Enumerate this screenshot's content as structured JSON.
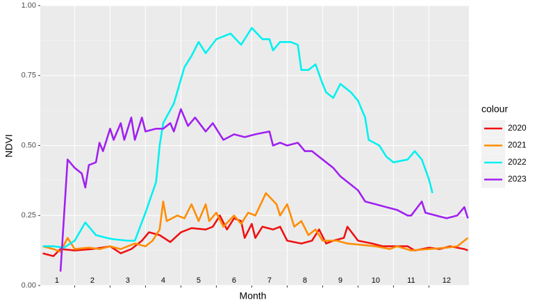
{
  "chart_data": {
    "type": "line",
    "xlabel": "Month",
    "ylabel": "NDVI",
    "legend_title": "colour",
    "legend": "right",
    "xlim": [
      0.53,
      12.63
    ],
    "ylim": [
      0,
      1
    ],
    "xticks": [
      1,
      2,
      3,
      4,
      5,
      6,
      7,
      8,
      9,
      10,
      11,
      12
    ],
    "xgrid": [
      1.5,
      2.5,
      3.5,
      4.5,
      5.5,
      6.5,
      7.5,
      8.5,
      9.5,
      10.5,
      11.5
    ],
    "yticks": [
      {
        "value": 0,
        "label": "0.00"
      },
      {
        "value": 0.25,
        "label": "0.25"
      },
      {
        "value": 0.5,
        "label": "0.50"
      },
      {
        "value": 0.75,
        "label": "0.75"
      },
      {
        "value": 1,
        "label": "1.00"
      }
    ],
    "yminor": [
      0.125,
      0.375,
      0.625,
      0.875
    ],
    "grid": true,
    "series": [
      {
        "name": "2020",
        "color": "#ee1111",
        "x": [
          0.6,
          0.9,
          1.1,
          1.5,
          2,
          2.5,
          2.8,
          3.1,
          3.4,
          3.6,
          3.9,
          4.2,
          4.5,
          4.8,
          5.2,
          5.4,
          5.6,
          5.8,
          6,
          6.2,
          6.3,
          6.5,
          6.6,
          6.8,
          7.1,
          7.3,
          7.5,
          7.9,
          8.2,
          8.4,
          8.6,
          8.8,
          9.1,
          9.2,
          9.5,
          9.9,
          10.2,
          10.6,
          10.9,
          11.1,
          11.5,
          11.8,
          12.1,
          12.5,
          12.6
        ],
        "values": [
          0.115,
          0.105,
          0.13,
          0.125,
          0.13,
          0.14,
          0.115,
          0.13,
          0.16,
          0.19,
          0.18,
          0.155,
          0.19,
          0.205,
          0.2,
          0.21,
          0.25,
          0.2,
          0.24,
          0.23,
          0.17,
          0.22,
          0.17,
          0.21,
          0.2,
          0.21,
          0.16,
          0.15,
          0.16,
          0.2,
          0.15,
          0.16,
          0.17,
          0.21,
          0.16,
          0.15,
          0.14,
          0.14,
          0.14,
          0.125,
          0.135,
          0.13,
          0.14,
          0.13,
          0.125
        ]
      },
      {
        "name": "2021",
        "color": "#ff8c00",
        "x": [
          0.6,
          0.9,
          1.1,
          1.3,
          1.5,
          1.9,
          2.2,
          2.5,
          2.8,
          3.2,
          3.5,
          3.7,
          3.9,
          4,
          4.1,
          4.4,
          4.6,
          4.8,
          5,
          5.2,
          5.3,
          5.5,
          5.7,
          6,
          6.2,
          6.4,
          6.6,
          6.9,
          7.2,
          7.3,
          7.5,
          7.7,
          7.9,
          8.1,
          8.3,
          8.5,
          8.9,
          9.2,
          9.6,
          10,
          10.4,
          10.6,
          11,
          11.5,
          12,
          12.3,
          12.6
        ],
        "values": [
          0.14,
          0.13,
          0.12,
          0.17,
          0.13,
          0.135,
          0.13,
          0.14,
          0.13,
          0.15,
          0.14,
          0.16,
          0.2,
          0.3,
          0.23,
          0.25,
          0.24,
          0.29,
          0.23,
          0.29,
          0.23,
          0.26,
          0.21,
          0.25,
          0.22,
          0.26,
          0.25,
          0.33,
          0.29,
          0.25,
          0.29,
          0.21,
          0.23,
          0.18,
          0.2,
          0.16,
          0.16,
          0.15,
          0.145,
          0.14,
          0.13,
          0.14,
          0.125,
          0.13,
          0.135,
          0.14,
          0.17
        ]
      },
      {
        "name": "2022",
        "color": "#00f0f0",
        "x": [
          0.6,
          0.9,
          1.2,
          1.5,
          1.8,
          2.1,
          2.4,
          2.6,
          3,
          3.2,
          3.5,
          3.8,
          3.9,
          4,
          4.3,
          4.6,
          4.8,
          5,
          5.2,
          5.5,
          5.9,
          6.2,
          6.5,
          6.8,
          7,
          7.1,
          7.3,
          7.6,
          7.8,
          7.9,
          8.1,
          8.3,
          8.5,
          8.6,
          8.8,
          9,
          9.3,
          9.5,
          9.7,
          9.8,
          10.1,
          10.3,
          10.5,
          10.9,
          11.1,
          11.3,
          11.5,
          11.6
        ],
        "values": [
          0.14,
          0.14,
          0.135,
          0.16,
          0.225,
          0.18,
          0.17,
          0.165,
          0.16,
          0.16,
          0.26,
          0.37,
          0.5,
          0.58,
          0.65,
          0.78,
          0.82,
          0.87,
          0.83,
          0.88,
          0.9,
          0.86,
          0.92,
          0.88,
          0.88,
          0.84,
          0.87,
          0.87,
          0.86,
          0.77,
          0.77,
          0.79,
          0.72,
          0.69,
          0.67,
          0.72,
          0.69,
          0.66,
          0.6,
          0.52,
          0.5,
          0.46,
          0.44,
          0.45,
          0.48,
          0.45,
          0.38,
          0.33
        ]
      },
      {
        "name": "2023",
        "color": "#a020f0",
        "x": [
          1.1,
          1.3,
          1.5,
          1.7,
          1.8,
          1.9,
          2.1,
          2.2,
          2.3,
          2.5,
          2.6,
          2.8,
          2.9,
          3.1,
          3.2,
          3.4,
          3.5,
          3.8,
          4,
          4.2,
          4.3,
          4.5,
          4.7,
          4.9,
          5.2,
          5.4,
          5.7,
          6,
          6.3,
          6.6,
          7,
          7.1,
          7.3,
          7.5,
          7.8,
          8,
          8.2,
          8.5,
          8.8,
          9,
          9.3,
          9.5,
          9.7,
          10,
          10.3,
          10.6,
          10.9,
          11,
          11.3,
          11.4,
          12,
          12.3,
          12.5,
          12.6
        ],
        "values": [
          0.05,
          0.45,
          0.42,
          0.4,
          0.35,
          0.43,
          0.44,
          0.51,
          0.48,
          0.56,
          0.52,
          0.58,
          0.52,
          0.6,
          0.52,
          0.6,
          0.55,
          0.56,
          0.56,
          0.58,
          0.55,
          0.63,
          0.57,
          0.6,
          0.55,
          0.58,
          0.52,
          0.54,
          0.53,
          0.54,
          0.55,
          0.5,
          0.51,
          0.5,
          0.51,
          0.48,
          0.48,
          0.45,
          0.42,
          0.39,
          0.36,
          0.34,
          0.3,
          0.29,
          0.28,
          0.27,
          0.25,
          0.25,
          0.3,
          0.26,
          0.24,
          0.25,
          0.28,
          0.24
        ]
      }
    ]
  }
}
